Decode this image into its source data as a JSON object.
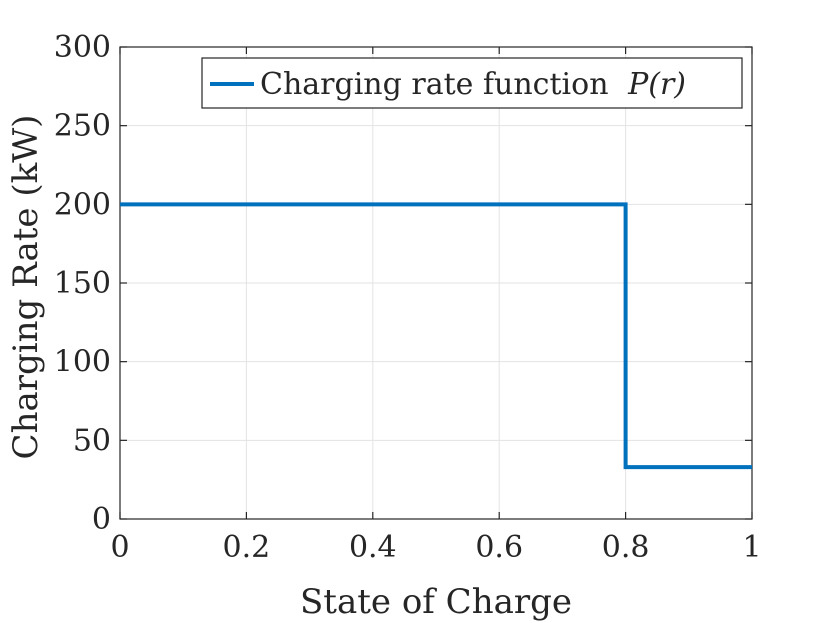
{
  "chart_data": {
    "type": "line",
    "title": "",
    "xlabel": "State of Charge",
    "ylabel": "Charging Rate (kW)",
    "xlim": [
      0,
      1
    ],
    "ylim": [
      0,
      300
    ],
    "grid": true,
    "xticks": [
      0,
      0.2,
      0.4,
      0.6,
      0.8,
      1
    ],
    "xtick_labels": [
      "0",
      "0.2",
      "0.4",
      "0.6",
      "0.8",
      "1"
    ],
    "yticks": [
      0,
      50,
      100,
      150,
      200,
      250,
      300
    ],
    "ytick_labels": [
      "0",
      "50",
      "100",
      "150",
      "200",
      "250",
      "300"
    ],
    "legend_position": "top-right",
    "series": [
      {
        "name": "Charging rate function",
        "name_math": "P(r)",
        "color": "#0072BD",
        "x": [
          0,
          0.8,
          0.8,
          1
        ],
        "y": [
          200,
          200,
          33,
          33
        ]
      }
    ]
  }
}
